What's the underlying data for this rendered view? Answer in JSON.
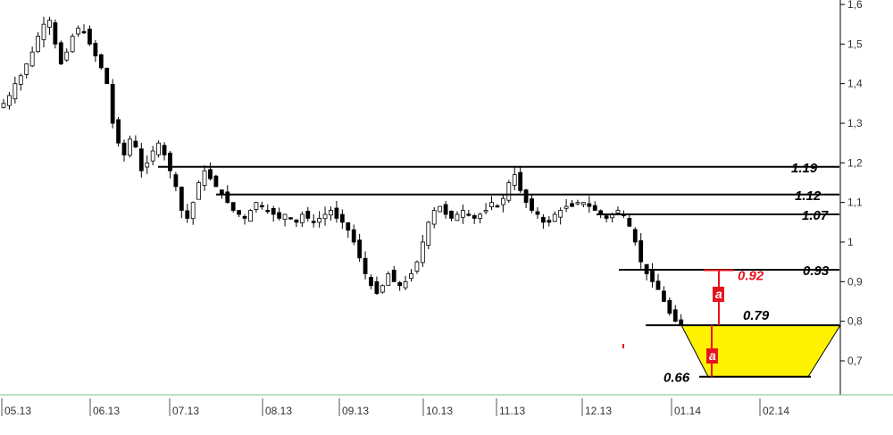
{
  "chart_data": {
    "type": "candlestick",
    "y_axis": {
      "ylim": [
        0.62,
        1.62
      ],
      "tick_labels": [
        "1,6",
        "1,5",
        "1,4",
        "1,3",
        "1,2",
        "1,1",
        "1",
        "0,9",
        "0,8",
        "0,7"
      ],
      "tick_values": [
        1.6,
        1.5,
        1.4,
        1.3,
        1.2,
        1.1,
        1.0,
        0.9,
        0.8,
        0.7
      ],
      "position": "right"
    },
    "x_axis": {
      "tick_labels": [
        "05.13",
        "06.13",
        "07.13",
        "08.13",
        "09.13",
        "10.13",
        "11.13",
        "12.13",
        "01.14",
        "02.14"
      ]
    },
    "series_closes_approx": [
      1.35,
      1.37,
      1.4,
      1.42,
      1.45,
      1.48,
      1.52,
      1.55,
      1.56,
      1.5,
      1.45,
      1.48,
      1.52,
      1.54,
      1.53,
      1.5,
      1.47,
      1.44,
      1.4,
      1.3,
      1.25,
      1.22,
      1.26,
      1.24,
      1.18,
      1.2,
      1.23,
      1.25,
      1.22,
      1.18,
      1.14,
      1.08,
      1.06,
      1.1,
      1.15,
      1.18,
      1.16,
      1.14,
      1.12,
      1.1,
      1.08,
      1.07,
      1.06,
      1.08,
      1.1,
      1.09,
      1.08,
      1.07,
      1.06,
      1.07,
      1.06,
      1.05,
      1.07,
      1.06,
      1.05,
      1.06,
      1.07,
      1.08,
      1.06,
      1.05,
      1.03,
      1.0,
      0.96,
      0.92,
      0.89,
      0.87,
      0.89,
      0.92,
      0.9,
      0.89,
      0.9,
      0.92,
      0.95,
      1.0,
      1.05,
      1.08,
      1.09,
      1.07,
      1.06,
      1.07,
      1.08,
      1.07,
      1.06,
      1.07,
      1.08,
      1.1,
      1.09,
      1.11,
      1.15,
      1.17,
      1.13,
      1.1,
      1.08,
      1.07,
      1.05,
      1.05,
      1.07,
      1.08,
      1.09,
      1.09,
      1.1,
      1.1,
      1.09,
      1.08,
      1.07,
      1.06,
      1.07,
      1.08,
      1.07,
      1.04,
      1.0,
      0.95,
      0.92,
      0.9,
      0.88,
      0.85,
      0.82,
      0.8,
      0.79,
      0.78,
      0.77,
      0.76,
      0.77,
      0.76,
      0.77,
      0.76,
      0.75,
      0.76,
      0.76,
      0.75,
      0.74,
      0.72,
      0.7,
      0.69,
      0.7,
      0.73
    ],
    "levels": [
      {
        "value": 1.19,
        "label": "1.19"
      },
      {
        "value": 1.12,
        "label": "1.12"
      },
      {
        "value": 1.07,
        "label": "1.07"
      },
      {
        "value": 0.93,
        "label": "0.93"
      },
      {
        "value": 0.79,
        "label": "0.79"
      },
      {
        "value": 0.66,
        "label": "0.66"
      }
    ],
    "target": {
      "value": 0.92,
      "label": "0.92",
      "color": "#e8131e"
    },
    "measure_label": "a",
    "channel_fill": "#fff200",
    "colors": {
      "up": "#ffffff",
      "down": "#000000",
      "line": "#000000",
      "grid": "#888888",
      "baseline": "#7fbf7f"
    }
  }
}
